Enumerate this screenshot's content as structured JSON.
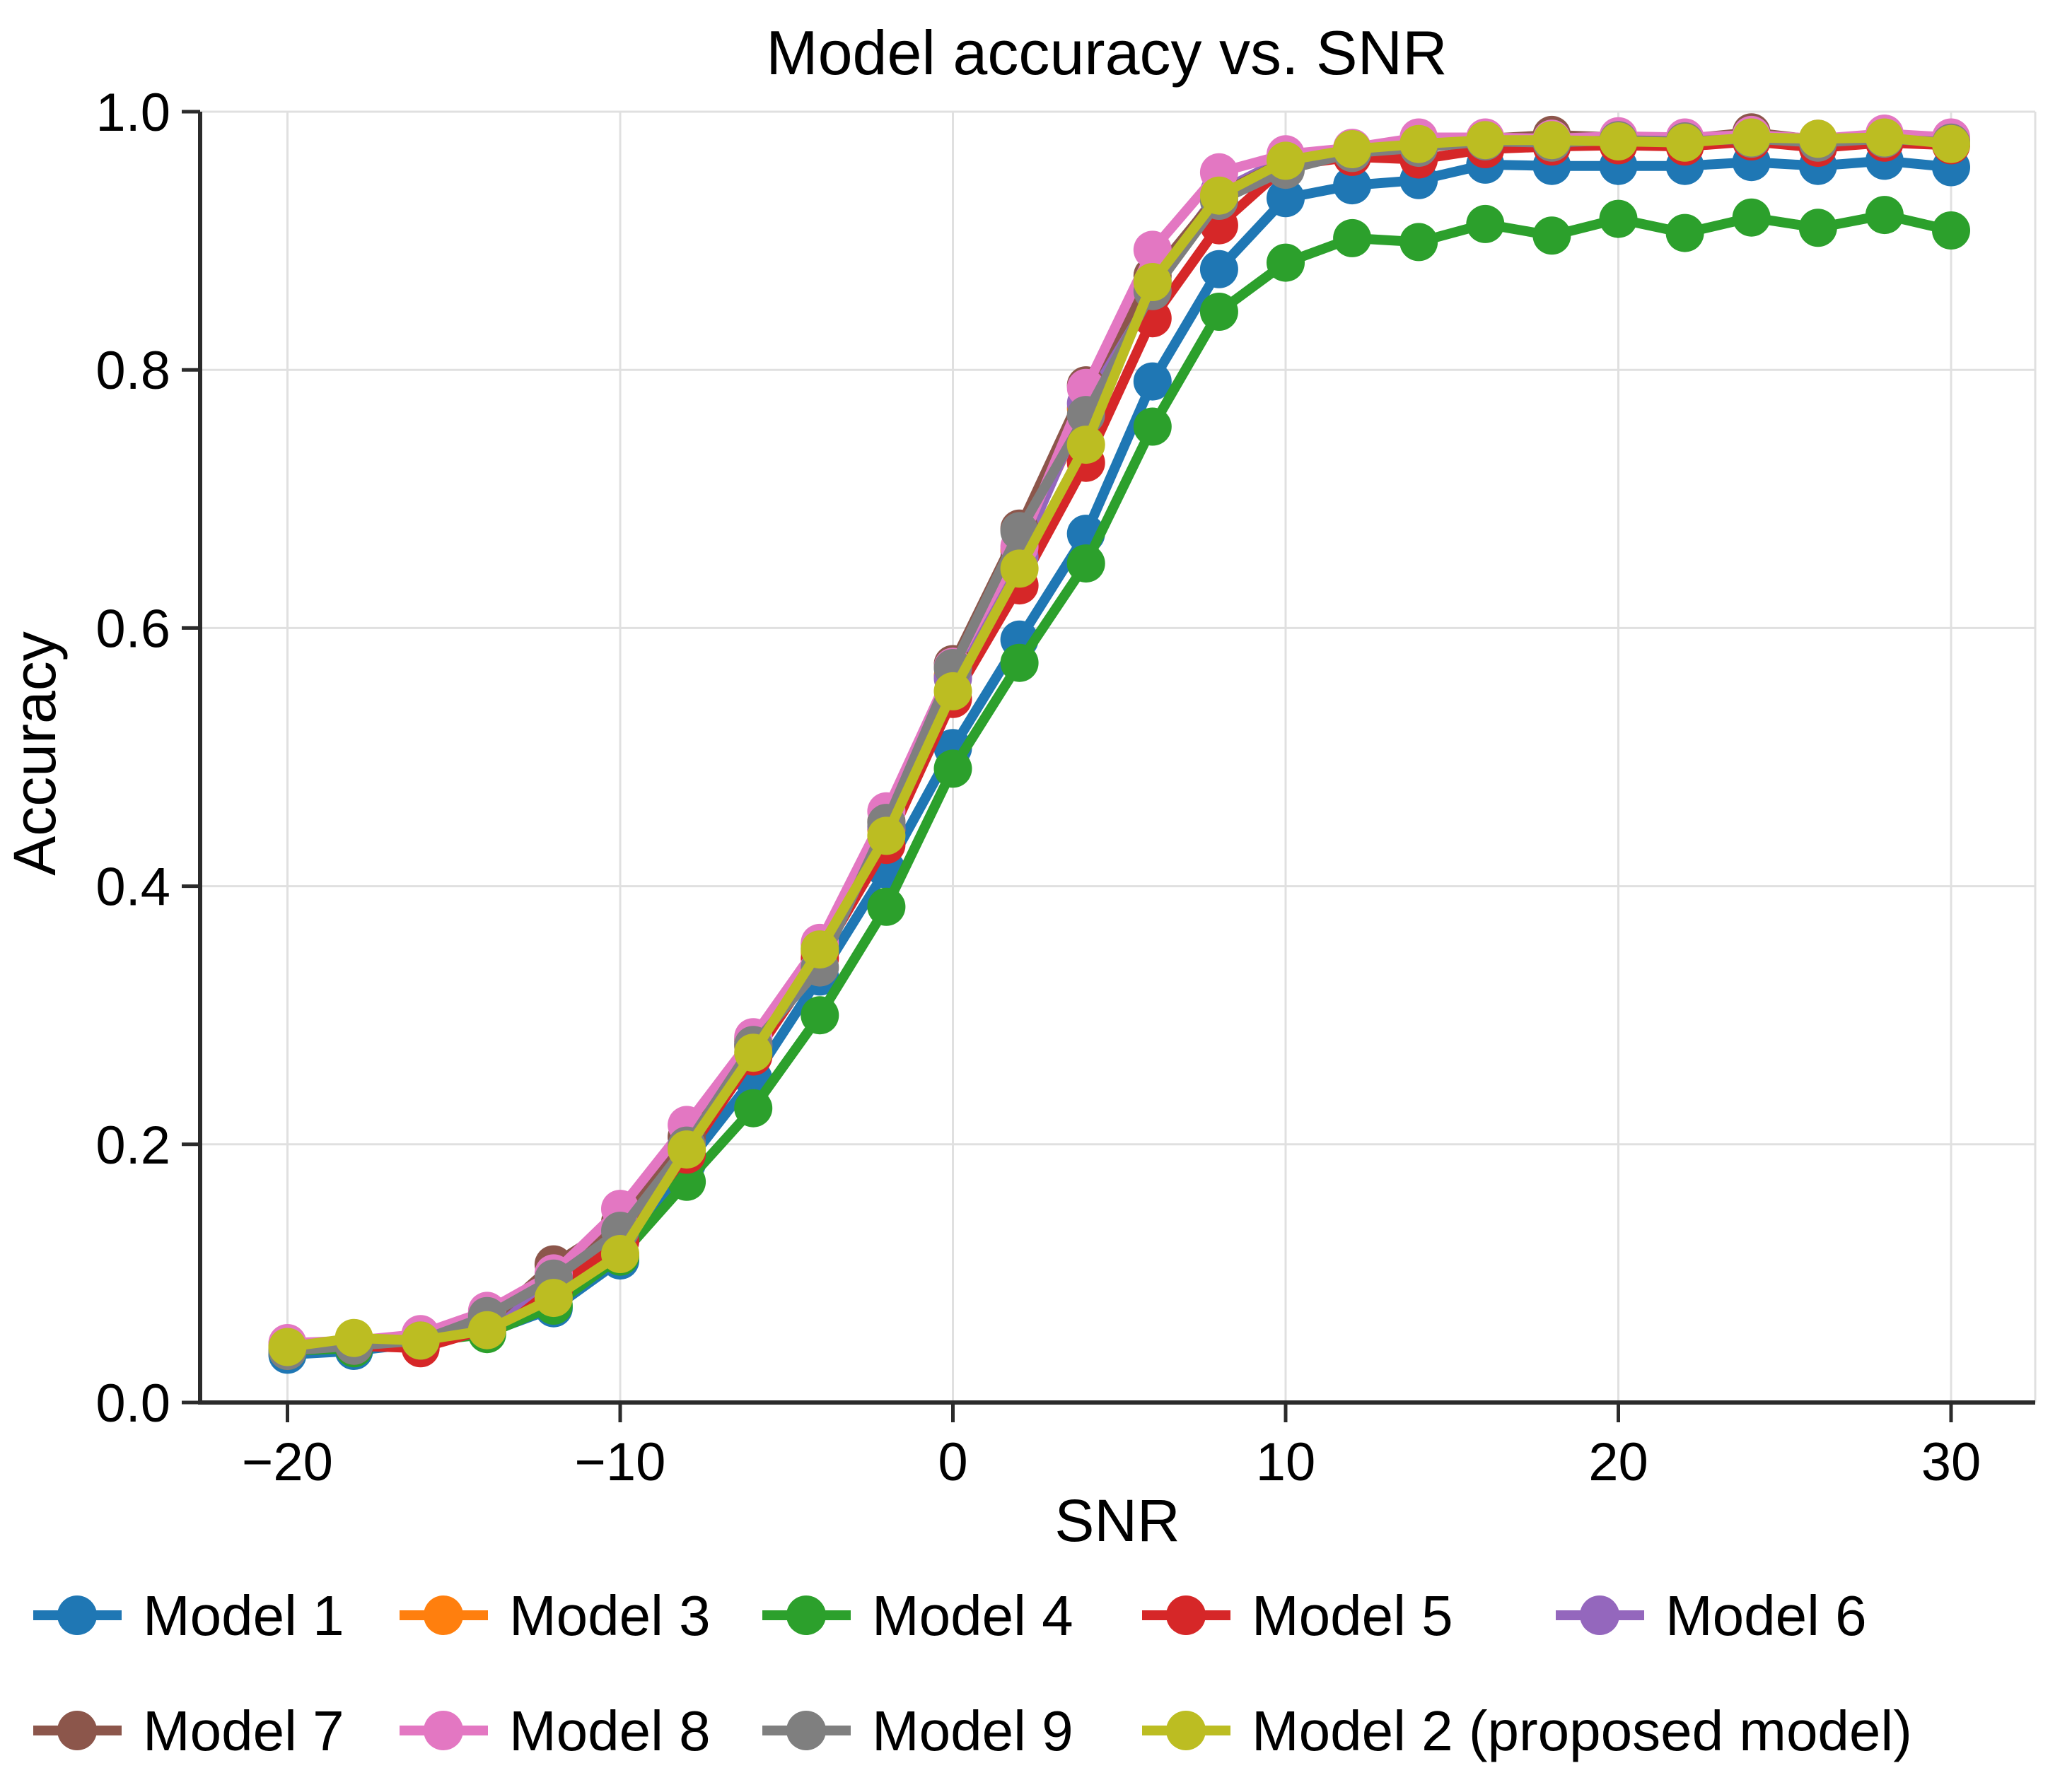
{
  "title": "Model accuracy vs. SNR",
  "chart_data": {
    "type": "line",
    "title": "Model accuracy vs. SNR",
    "xlabel": "SNR",
    "ylabel": "Accuracy",
    "grid": true,
    "legend_position": "below-two-rows",
    "xlim": [
      -22.6,
      32.5
    ],
    "ylim": [
      0.0,
      1.0
    ],
    "xticks": [
      -20,
      -10,
      0,
      10,
      20,
      30
    ],
    "xtick_labels": [
      "−20",
      "−10",
      "0",
      "10",
      "20",
      "30"
    ],
    "yticks": [
      0.0,
      0.2,
      0.4,
      0.6,
      0.8,
      1.0
    ],
    "ytick_labels": [
      "0.0",
      "0.2",
      "0.4",
      "0.6",
      "0.8",
      "1.0"
    ],
    "x": [
      -20,
      -18,
      -16,
      -14,
      -12,
      -10,
      -8,
      -6,
      -4,
      -2,
      0,
      2,
      4,
      6,
      8,
      10,
      12,
      14,
      16,
      18,
      20,
      22,
      24,
      26,
      28,
      30
    ],
    "series": [
      {
        "name": "Model 1",
        "color": "#1f77b4",
        "values": [
          0.037,
          0.04,
          0.046,
          0.054,
          0.073,
          0.11,
          0.185,
          0.251,
          0.33,
          0.413,
          0.507,
          0.591,
          0.673,
          0.791,
          0.878,
          0.933,
          0.943,
          0.947,
          0.959,
          0.958,
          0.958,
          0.958,
          0.961,
          0.958,
          0.962,
          0.957
        ]
      },
      {
        "name": "Model 3",
        "color": "#ff7f0e",
        "values": [
          0.041,
          0.045,
          0.049,
          0.06,
          0.092,
          0.13,
          0.2,
          0.276,
          0.349,
          0.444,
          0.563,
          0.66,
          0.77,
          0.866,
          0.934,
          0.961,
          0.969,
          0.973,
          0.977,
          0.977,
          0.978,
          0.977,
          0.98,
          0.977,
          0.98,
          0.977
        ]
      },
      {
        "name": "Model 4",
        "color": "#2ca02c",
        "values": [
          0.04,
          0.042,
          0.047,
          0.053,
          0.075,
          0.113,
          0.171,
          0.228,
          0.3,
          0.384,
          0.491,
          0.573,
          0.65,
          0.756,
          0.845,
          0.883,
          0.902,
          0.899,
          0.913,
          0.904,
          0.917,
          0.906,
          0.918,
          0.91,
          0.92,
          0.908
        ]
      },
      {
        "name": "Model 5",
        "color": "#d62728",
        "values": [
          0.042,
          0.044,
          0.042,
          0.057,
          0.087,
          0.125,
          0.192,
          0.268,
          0.344,
          0.432,
          0.545,
          0.633,
          0.728,
          0.84,
          0.912,
          0.958,
          0.965,
          0.963,
          0.971,
          0.973,
          0.974,
          0.973,
          0.977,
          0.972,
          0.976,
          0.974
        ]
      },
      {
        "name": "Model 6",
        "color": "#9467bd",
        "values": [
          0.044,
          0.046,
          0.051,
          0.058,
          0.098,
          0.138,
          0.205,
          0.278,
          0.352,
          0.446,
          0.561,
          0.655,
          0.774,
          0.869,
          0.938,
          0.964,
          0.97,
          0.974,
          0.978,
          0.978,
          0.98,
          0.978,
          0.981,
          0.978,
          0.98,
          0.977
        ]
      },
      {
        "name": "Model 7",
        "color": "#8c564b",
        "values": [
          0.041,
          0.045,
          0.049,
          0.061,
          0.107,
          0.14,
          0.206,
          0.281,
          0.355,
          0.45,
          0.572,
          0.677,
          0.788,
          0.873,
          0.936,
          0.962,
          0.97,
          0.976,
          0.979,
          0.982,
          0.98,
          0.979,
          0.984,
          0.978,
          0.982,
          0.978
        ]
      },
      {
        "name": "Model 8",
        "color": "#e377c2",
        "values": [
          0.046,
          0.048,
          0.053,
          0.071,
          0.1,
          0.15,
          0.215,
          0.283,
          0.356,
          0.458,
          0.57,
          0.663,
          0.786,
          0.893,
          0.953,
          0.967,
          0.972,
          0.98,
          0.98,
          0.979,
          0.981,
          0.98,
          0.982,
          0.979,
          0.983,
          0.98
        ]
      },
      {
        "name": "Model 9",
        "color": "#7f7f7f",
        "values": [
          0.04,
          0.044,
          0.048,
          0.067,
          0.096,
          0.133,
          0.199,
          0.277,
          0.337,
          0.449,
          0.569,
          0.675,
          0.765,
          0.861,
          0.931,
          0.955,
          0.968,
          0.972,
          0.977,
          0.976,
          0.978,
          0.977,
          0.979,
          0.976,
          0.979,
          0.976
        ]
      },
      {
        "name": "Model 2 (proposed model)",
        "color": "#bcbd22",
        "values": [
          0.043,
          0.05,
          0.048,
          0.056,
          0.081,
          0.115,
          0.196,
          0.271,
          0.351,
          0.439,
          0.551,
          0.646,
          0.742,
          0.868,
          0.935,
          0.962,
          0.971,
          0.975,
          0.978,
          0.978,
          0.977,
          0.976,
          0.98,
          0.979,
          0.98,
          0.975
        ]
      }
    ],
    "legend": {
      "rows": [
        [
          {
            "label": "Model 1",
            "color": "#1f77b4",
            "x": 47
          },
          {
            "label": "Model 3",
            "color": "#ff7f0e",
            "x": 565
          },
          {
            "label": "Model 4",
            "color": "#2ca02c",
            "x": 1078
          },
          {
            "label": "Model 5",
            "color": "#d62728",
            "x": 1615
          },
          {
            "label": "Model 6",
            "color": "#9467bd",
            "x": 2200
          }
        ],
        [
          {
            "label": "Model 7",
            "color": "#8c564b",
            "x": 47
          },
          {
            "label": "Model 8",
            "color": "#e377c2",
            "x": 565
          },
          {
            "label": "Model 9",
            "color": "#7f7f7f",
            "x": 1078
          },
          {
            "label": "Model 2 (proposed model)",
            "color": "#bcbd22",
            "x": 1615
          }
        ]
      ],
      "row_y": [
        2285,
        2448
      ]
    },
    "style": {
      "grid_color": "#e0e0e0",
      "spine_color": "#2b2b2b",
      "line_width": 14,
      "marker_radius": 27
    }
  }
}
